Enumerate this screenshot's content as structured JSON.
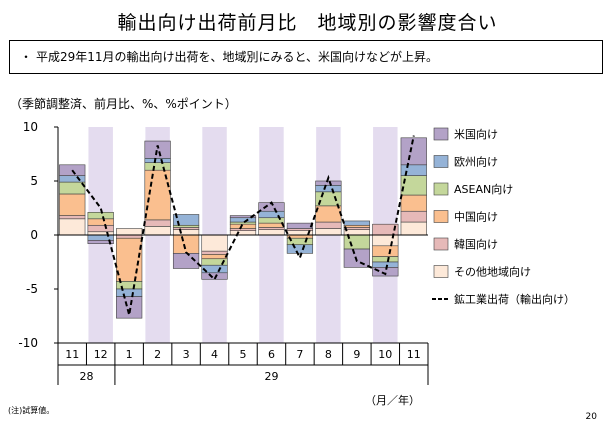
{
  "title": "輸出向け出荷前月比　地域別の影響度合い",
  "summary": {
    "bullet": "・",
    "text": "平成29年11月の輸出向け出荷を、地域別にみると、米国向けなどが上昇。"
  },
  "units_label": "（季節調整済、前月比、%、%ポイント）",
  "note": "(注)試算値。",
  "page_number": "20",
  "colors": {
    "band": "#e4dcef",
    "米国向け": "#b3a2c7",
    "欧州向け": "#95b3d7",
    "ASEAN向け": "#c4d79b",
    "中国向け": "#fabf8f",
    "韓国向け": "#e6b9b8",
    "その他地域向け": "#fde9d9",
    "line": "#000000"
  },
  "chart_data": {
    "type": "bar",
    "stacked": true,
    "categories": [
      "11",
      "12",
      "1",
      "2",
      "3",
      "4",
      "5",
      "6",
      "7",
      "8",
      "9",
      "10",
      "11"
    ],
    "year_labels": [
      {
        "label": "28",
        "start": 0,
        "end": 1
      },
      {
        "label": "29",
        "start": 2,
        "end": 12
      }
    ],
    "x_unit_label": "（月／年）",
    "ylim": [
      -10,
      10
    ],
    "yticks": [
      10,
      5,
      0,
      -5,
      -10
    ],
    "shaded_categories": [
      1,
      3,
      5,
      7,
      9,
      11
    ],
    "series": [
      {
        "name": "その他地域向け",
        "values": [
          1.5,
          0.3,
          0.6,
          0.8,
          0.5,
          -1.5,
          0.4,
          0.5,
          0.4,
          0.6,
          0.5,
          -1.0,
          1.2
        ]
      },
      {
        "name": "韓国向け",
        "values": [
          0.3,
          0.6,
          -0.3,
          0.6,
          0.2,
          -0.3,
          0.2,
          0.2,
          0.2,
          0.6,
          0.2,
          1.0,
          1.0
        ]
      },
      {
        "name": "中国向け",
        "values": [
          2.0,
          0.6,
          -4.0,
          4.6,
          -1.7,
          -0.4,
          0.4,
          0.4,
          -0.3,
          1.5,
          0.2,
          -1.0,
          1.5
        ]
      },
      {
        "name": "ASEAN向け",
        "values": [
          1.1,
          0.6,
          -0.7,
          0.7,
          0.2,
          -0.6,
          0.2,
          0.5,
          -0.6,
          1.3,
          -1.3,
          -0.5,
          1.8
        ]
      },
      {
        "name": "欧州向け",
        "values": [
          0.6,
          -0.5,
          -0.7,
          0.4,
          1.0,
          -0.7,
          0.4,
          0.6,
          -0.8,
          0.6,
          0.4,
          -0.5,
          1.0
        ]
      },
      {
        "name": "米国向け",
        "values": [
          1.0,
          -0.3,
          -2.0,
          1.6,
          -1.4,
          -0.6,
          0.2,
          0.8,
          0.5,
          0.4,
          -1.7,
          -0.8,
          2.5
        ]
      }
    ],
    "line_series": {
      "name": "鉱工業出荷（輸出向け）",
      "values": [
        6.0,
        2.5,
        -7.4,
        8.3,
        -1.6,
        -4.1,
        1.1,
        3.0,
        -2.1,
        5.3,
        -2.4,
        -3.6,
        9.2
      ]
    }
  }
}
